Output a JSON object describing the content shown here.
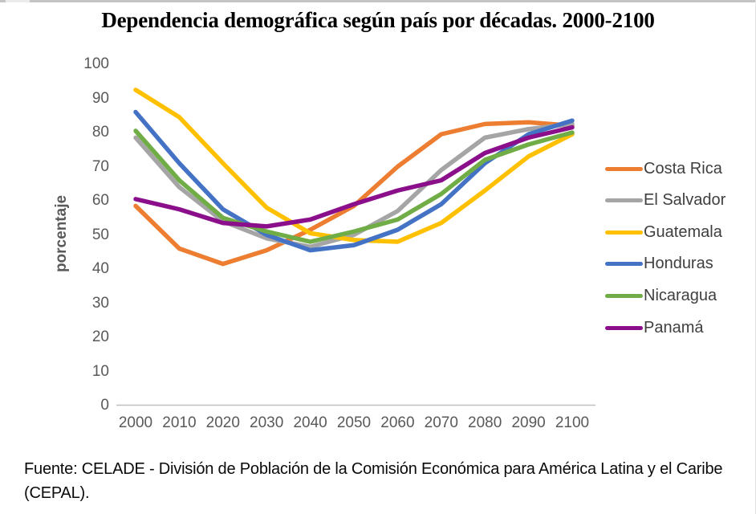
{
  "page": {
    "title": "Dependencia demográfica según país por décadas. 2000-2100",
    "source_note": "Fuente: CELADE - División de Población de la Comisión Económica para América Latina y el Caribe (CEPAL)."
  },
  "chart_data": {
    "type": "line",
    "title": "Dependencia demográfica según país por décadas. 2000-2100",
    "xlabel": "",
    "ylabel": "porcentaje",
    "categories": [
      2000,
      2010,
      2020,
      2030,
      2040,
      2050,
      2060,
      2070,
      2080,
      2090,
      2100
    ],
    "ylim": [
      0,
      100
    ],
    "ytick_step": 10,
    "grid": false,
    "legend_position": "right",
    "axis_color": "#bfbfbf",
    "tick_label_color": "#595959",
    "series": [
      {
        "name": "Costa Rica",
        "color": "#ED7D31",
        "values": [
          58.5,
          46,
          41.5,
          45.5,
          51.5,
          58.5,
          70,
          79.5,
          82.5,
          83,
          82
        ]
      },
      {
        "name": "El Salvador",
        "color": "#A5A5A5",
        "values": [
          78.5,
          64,
          54,
          49,
          46.5,
          50,
          57,
          69,
          78.5,
          81,
          82.5
        ]
      },
      {
        "name": "Guatemala",
        "color": "#FFC000",
        "values": [
          92.5,
          84.5,
          71,
          58,
          50.5,
          48.5,
          48,
          53.5,
          63,
          73,
          79.5
        ]
      },
      {
        "name": "Honduras",
        "color": "#4472C4",
        "values": [
          86,
          71,
          57.5,
          50,
          45.5,
          47,
          51.5,
          59,
          71,
          79.5,
          83.5
        ]
      },
      {
        "name": "Nicaragua",
        "color": "#70AD47",
        "values": [
          80.5,
          66,
          55,
          51,
          48,
          51,
          54.5,
          62,
          72,
          76.5,
          80
        ]
      },
      {
        "name": "Panamá",
        "color": "#8B0E8B",
        "values": [
          60.5,
          57.5,
          53.5,
          52.5,
          54.5,
          59,
          63,
          66,
          74,
          78.5,
          81.5
        ]
      }
    ]
  }
}
